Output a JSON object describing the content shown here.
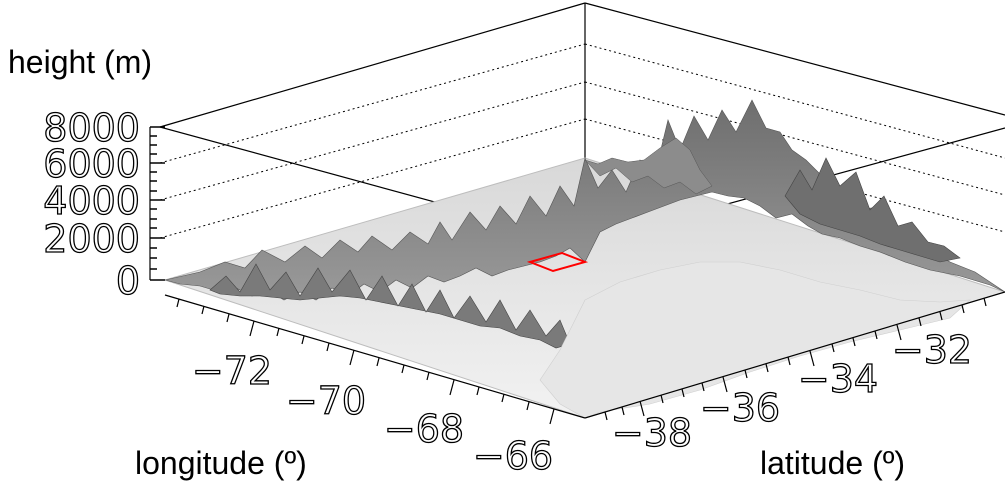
{
  "chart_data": {
    "type": "surface3d",
    "title": "",
    "zlabel": "height (m)",
    "xlabel": "longitude (º)",
    "ylabel": "latitude (º)",
    "z_ticks": [
      "8000",
      "6000",
      "4000",
      "2000",
      "0"
    ],
    "x_ticks": [
      "−72",
      "−70",
      "−68",
      "−66"
    ],
    "y_ticks": [
      "−38",
      "−36",
      "−34",
      "−32"
    ],
    "zlim": [
      0,
      8000
    ],
    "xlim": [
      -74,
      -65.5
    ],
    "ylim": [
      -39,
      -31
    ],
    "grid": "z-dotted",
    "surface_color": "#808080",
    "highlight_color": "#ff0000"
  }
}
